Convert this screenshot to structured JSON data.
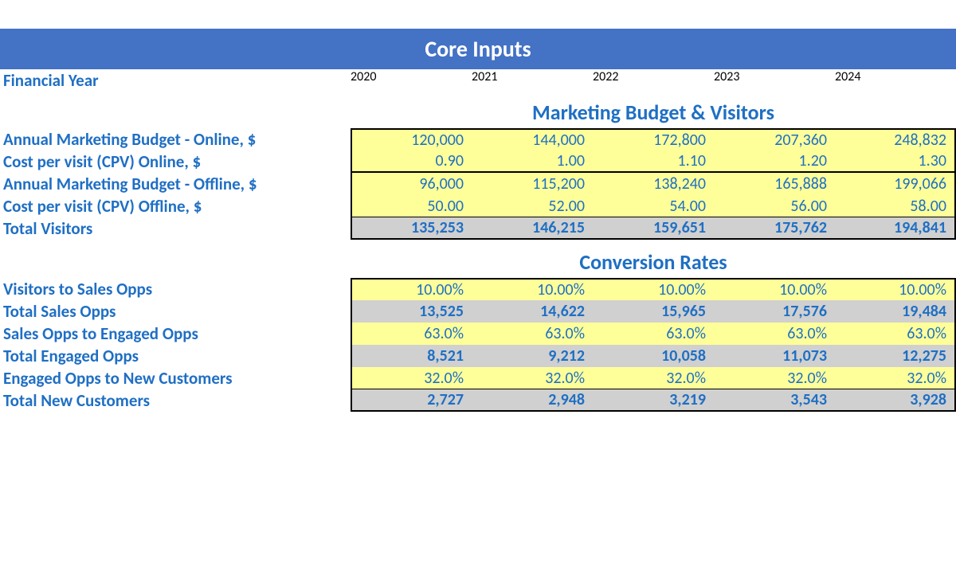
{
  "banner": "Core Inputs",
  "header_label": "Financial Year",
  "years": [
    "2020",
    "2021",
    "2022",
    "2023",
    "2024"
  ],
  "section1": {
    "title": "Marketing Budget & Visitors",
    "rows": [
      {
        "label": "Annual Marketing Budget - Online, $",
        "values": [
          "120,000",
          "144,000",
          "172,800",
          "207,360",
          "248,832"
        ],
        "style": "yellow"
      },
      {
        "label": "Cost per visit (CPV) Online, $",
        "values": [
          "0.90",
          "1.00",
          "1.10",
          "1.20",
          "1.30"
        ],
        "style": "yellow"
      },
      {
        "label": "Annual Marketing Budget - Offline, $",
        "values": [
          "96,000",
          "115,200",
          "138,240",
          "165,888",
          "199,066"
        ],
        "style": "yellow"
      },
      {
        "label": "Cost per visit (CPV) Offline, $",
        "values": [
          "50.00",
          "52.00",
          "54.00",
          "56.00",
          "58.00"
        ],
        "style": "yellow"
      },
      {
        "label": "Total Visitors",
        "values": [
          "135,253",
          "146,215",
          "159,651",
          "175,762",
          "194,841"
        ],
        "style": "gray"
      }
    ]
  },
  "section2": {
    "title": "Conversion Rates",
    "rows": [
      {
        "label": "Visitors to Sales Opps",
        "values": [
          "10.00%",
          "10.00%",
          "10.00%",
          "10.00%",
          "10.00%"
        ],
        "style": "yellow"
      },
      {
        "label": "Total Sales Opps",
        "values": [
          "13,525",
          "14,622",
          "15,965",
          "17,576",
          "19,484"
        ],
        "style": "gray"
      },
      {
        "label": "Sales Opps to Engaged Opps",
        "values": [
          "63.0%",
          "63.0%",
          "63.0%",
          "63.0%",
          "63.0%"
        ],
        "style": "yellow"
      },
      {
        "label": "Total Engaged Opps",
        "values": [
          "8,521",
          "9,212",
          "10,058",
          "11,073",
          "12,275"
        ],
        "style": "gray"
      },
      {
        "label": "Engaged Opps to New Customers",
        "values": [
          "32.0%",
          "32.0%",
          "32.0%",
          "32.0%",
          "32.0%"
        ],
        "style": "yellow"
      },
      {
        "label": "Total New Customers",
        "values": [
          "2,727",
          "2,948",
          "3,219",
          "3,543",
          "3,928"
        ],
        "style": "gray"
      }
    ]
  },
  "colors": {
    "banner_bg": "#4472c4",
    "banner_fg": "#ffffff",
    "blue_text": "#1f6fc4",
    "yellow_bg": "#ffff99",
    "gray_bg": "#d0d0d0"
  }
}
